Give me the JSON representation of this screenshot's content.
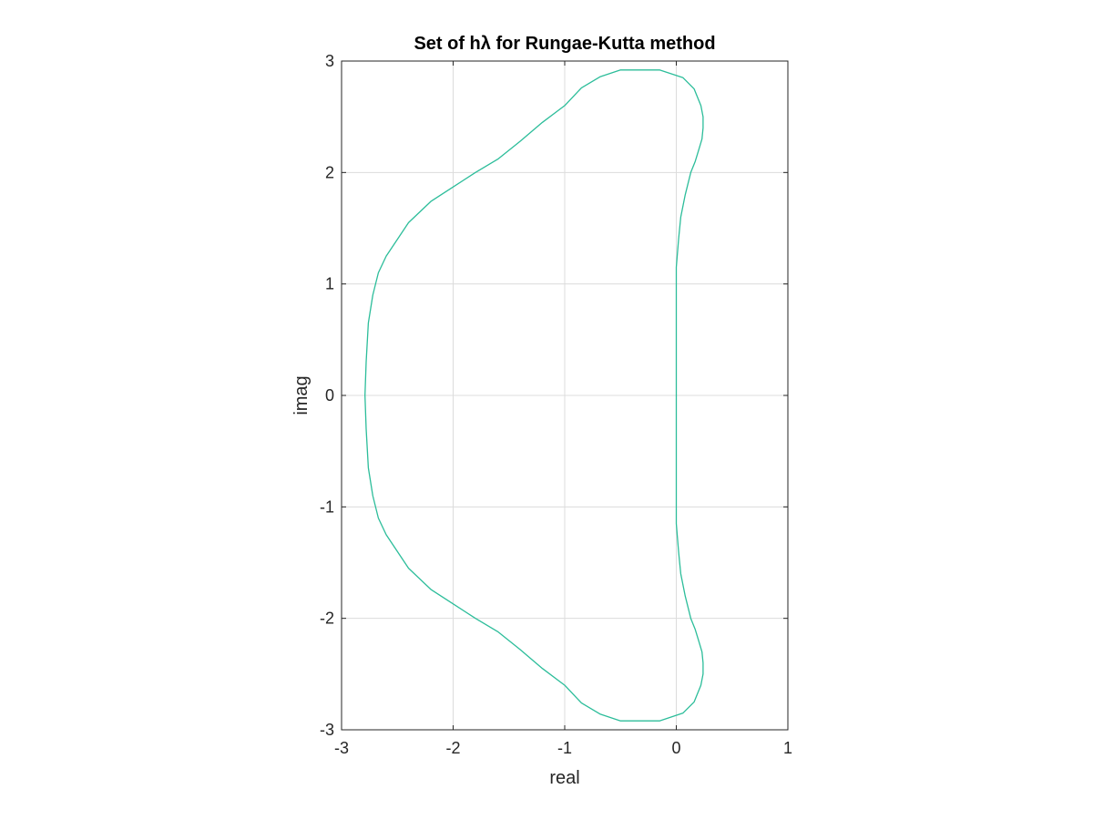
{
  "chart_data": {
    "type": "line",
    "title": "Set of hλ for Rungae-Kutta method",
    "xlabel": "real",
    "ylabel": "imag",
    "xlim": [
      -3,
      1
    ],
    "ylim": [
      -3,
      3
    ],
    "xticks": [
      -3,
      -2,
      -1,
      0,
      1
    ],
    "yticks": [
      -3,
      -2,
      -1,
      0,
      1,
      2,
      3
    ],
    "xtick_labels": [
      "-3",
      "-2",
      "-1",
      "0",
      "1"
    ],
    "ytick_labels": [
      "-3",
      "-2",
      "-1",
      "0",
      "1",
      "2",
      "3"
    ],
    "grid": true,
    "legend": "none",
    "colors": {
      "series": "#2cbd9a",
      "axes": "#262626",
      "grid": "#dcdcdc",
      "title": "#000000"
    },
    "series": [
      {
        "x": [
          0.0,
          0.0,
          0.02,
          0.04,
          0.08,
          0.13,
          0.17,
          0.2,
          0.23,
          0.24,
          0.24,
          0.22,
          0.16,
          0.06,
          -0.15,
          -0.5,
          -0.68,
          -0.85,
          -1.0,
          -1.2,
          -1.4,
          -1.6,
          -1.8,
          -2.0,
          -2.2,
          -2.4,
          -2.6,
          -2.67,
          -2.72,
          -2.76,
          -2.78,
          -2.79,
          -2.78,
          -2.76,
          -2.72,
          -2.67,
          -2.6,
          -2.4,
          -2.2,
          -2.0,
          -1.8,
          -1.6,
          -1.4,
          -1.2,
          -1.0,
          -0.85,
          -0.68,
          -0.5,
          -0.15,
          0.06,
          0.16,
          0.22,
          0.24,
          0.24,
          0.23,
          0.2,
          0.17,
          0.13,
          0.08,
          0.04,
          0.02,
          0.0,
          0.0
        ],
        "y": [
          0.0,
          1.15,
          1.4,
          1.6,
          1.8,
          2.0,
          2.1,
          2.2,
          2.3,
          2.4,
          2.5,
          2.6,
          2.75,
          2.85,
          2.92,
          2.92,
          2.86,
          2.76,
          2.6,
          2.45,
          2.28,
          2.12,
          2.0,
          1.87,
          1.74,
          1.55,
          1.25,
          1.1,
          0.9,
          0.65,
          0.3,
          0.0,
          -0.3,
          -0.65,
          -0.9,
          -1.1,
          -1.25,
          -1.55,
          -1.74,
          -1.87,
          -2.0,
          -2.12,
          -2.28,
          -2.45,
          -2.6,
          -2.76,
          -2.86,
          -2.92,
          -2.92,
          -2.85,
          -2.75,
          -2.6,
          -2.5,
          -2.4,
          -2.3,
          -2.2,
          -2.1,
          -2.0,
          -1.8,
          -1.6,
          -1.4,
          -1.15,
          0.0
        ]
      }
    ]
  }
}
